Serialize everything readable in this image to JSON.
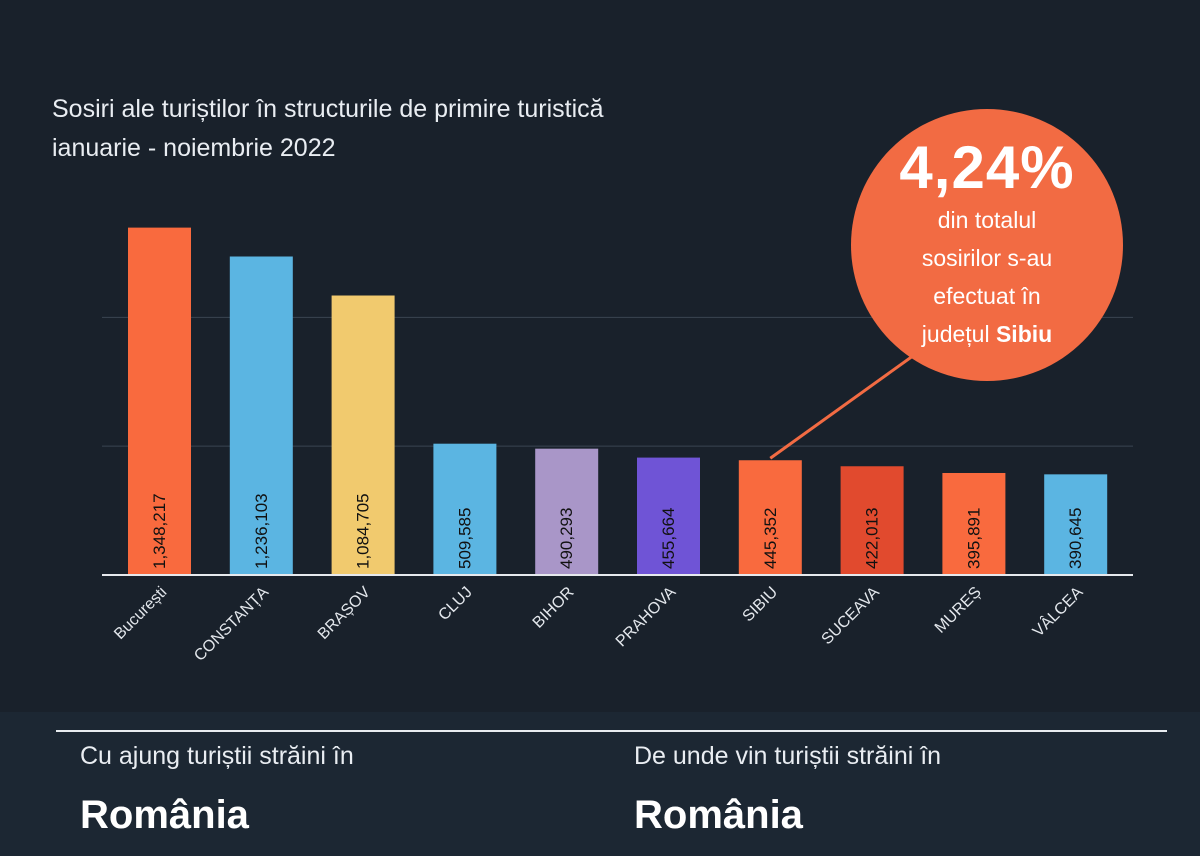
{
  "chart_data": {
    "type": "bar",
    "title": "Sosiri ale turiștilor în structurile de primire turistică ianuarie - noiembrie 2022",
    "categories": [
      "București",
      "CONSTANȚA",
      "BRAȘOV",
      "CLUJ",
      "BIHOR",
      "PRAHOVA",
      "SIBIU",
      "SUCEAVA",
      "MUREȘ",
      "VÂLCEA"
    ],
    "values": [
      1348217,
      1236103,
      1084705,
      509585,
      490293,
      455664,
      445352,
      422013,
      395891,
      390645
    ],
    "value_labels": [
      "1,348,217",
      "1,236,103",
      "1,084,705",
      "509,585",
      "490,293",
      "455,664",
      "445,352",
      "422,013",
      "395,891",
      "390,645"
    ],
    "colors": [
      "#f96a3e",
      "#5bb5e2",
      "#f1ca6e",
      "#5bb5e2",
      "#a996c8",
      "#6f54d6",
      "#f96a3e",
      "#e14a2e",
      "#f96a3e",
      "#5bb5e2"
    ],
    "ylim": [
      0,
      1370000
    ],
    "gridlines": [
      500000,
      1000000
    ],
    "grid": true,
    "legend": "none"
  },
  "callout": {
    "percent": "4,24%",
    "line1": "din totalul",
    "line2": "sosirilor s-au",
    "line3": "efectuat în",
    "line4_prefix": "județul ",
    "line4_bold": "Sibiu",
    "color": "#f26b43"
  },
  "footer": {
    "left_sub": "Cu ajung turiștii străini în",
    "left_main": "România",
    "right_sub": "De unde vin turiștii străini în",
    "right_main": "România"
  }
}
